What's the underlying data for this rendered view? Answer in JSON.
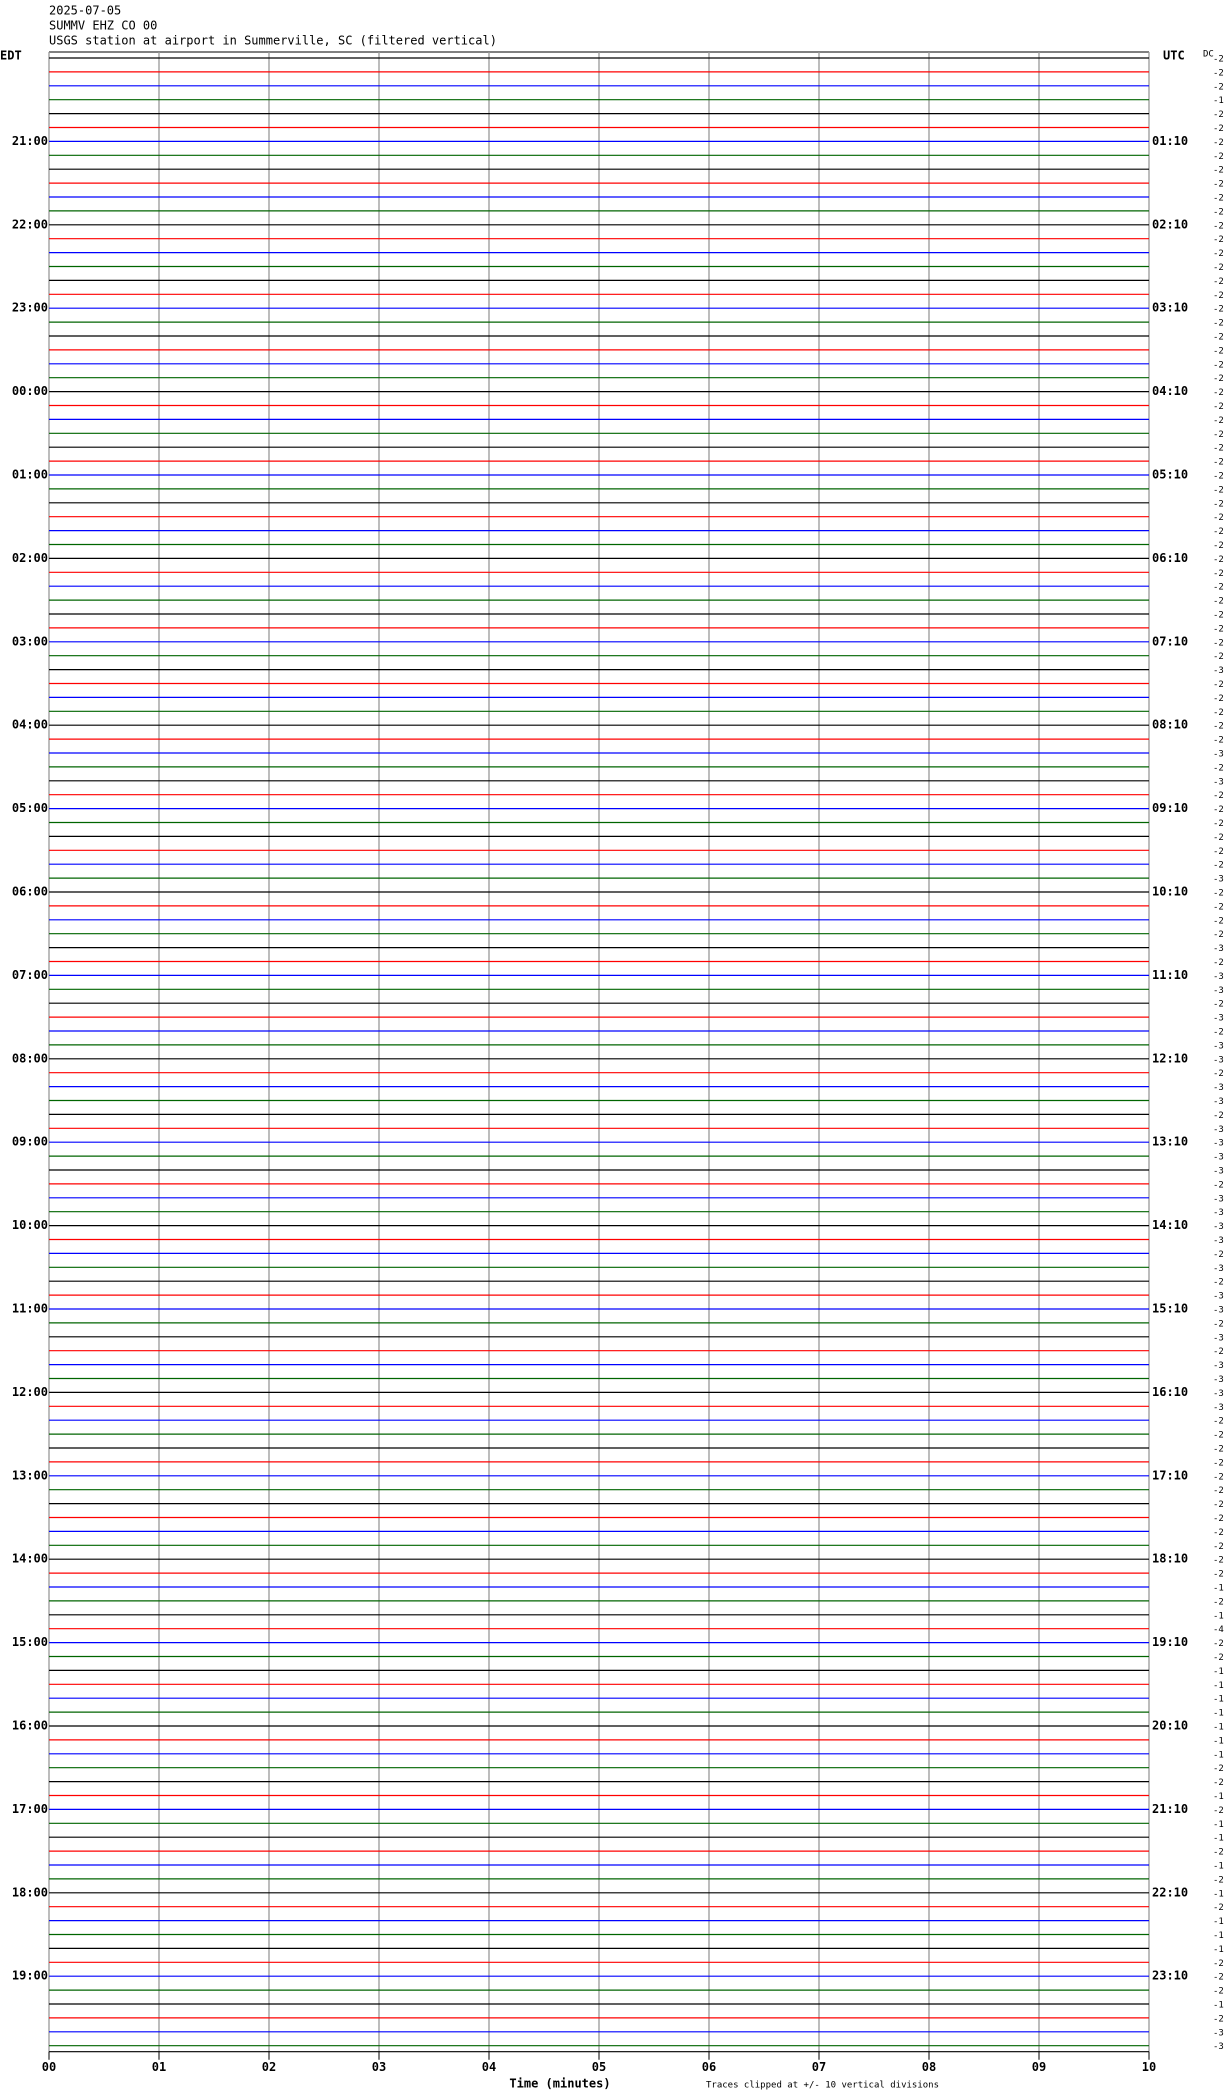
{
  "chart_data": {
    "type": "helicorder",
    "date": "2025-07-05",
    "station": "SUMMV EHZ CO 00",
    "description": "USGS station at airport in Summerville, SC (filtered vertical)",
    "left_axis_label": "EDT",
    "right_axis_label": "UTC",
    "dc_label": "DC",
    "x_axis_label": "Time (minutes)",
    "note": "Traces clipped at +/- 10 vertical divisions",
    "left_times": [
      "21:00",
      "22:00",
      "23:00",
      "00:00",
      "01:00",
      "02:00",
      "03:00",
      "04:00",
      "05:00",
      "06:00",
      "07:00",
      "08:00",
      "09:00",
      "10:00",
      "11:00",
      "12:00",
      "13:00",
      "14:00",
      "15:00",
      "16:00",
      "17:00",
      "18:00",
      "19:00"
    ],
    "right_times": [
      "01:10",
      "02:10",
      "03:10",
      "04:10",
      "05:10",
      "06:10",
      "07:10",
      "08:10",
      "09:10",
      "10:10",
      "11:10",
      "12:10",
      "13:10",
      "14:10",
      "15:10",
      "16:10",
      "17:10",
      "18:10",
      "19:10",
      "20:10",
      "21:10",
      "22:10",
      "23:10"
    ],
    "trace_colors": [
      "#000000",
      "#ff0000",
      "#0000ff",
      "#006400"
    ],
    "dc_offsets": [
      -2,
      -2,
      -2,
      -1,
      -2,
      -2,
      -2,
      -2,
      -2,
      -2,
      -2,
      -2,
      -2,
      -2,
      -2,
      -2,
      -2,
      -2,
      -2,
      -2,
      -2,
      -2,
      -2,
      -2,
      -2,
      -2,
      -2,
      -2,
      -2,
      -2,
      -2,
      -2,
      -2,
      -2,
      -2,
      -2,
      -2,
      -2,
      -2,
      -2,
      -2,
      -2,
      -2,
      -2,
      -3,
      -2,
      -2,
      -2,
      -2,
      -2,
      -3,
      -2,
      -3,
      -2,
      -2,
      -2,
      -2,
      -2,
      -2,
      -3,
      -2,
      -2,
      -2,
      -2,
      -3,
      -2,
      -3,
      -3,
      -2,
      -3,
      -2,
      -3,
      -3,
      -2,
      -3,
      -3,
      -2,
      -3,
      -3,
      -3,
      -3,
      -2,
      -3,
      -3,
      -3,
      -3,
      -2,
      -3,
      -2,
      -3,
      -3,
      -2,
      -3,
      -2,
      -3,
      -3,
      -3,
      -3,
      -2,
      -2,
      -2,
      -2,
      -2,
      -2,
      -2,
      -2,
      -2,
      -2,
      -2,
      -2,
      -1,
      -2,
      -1,
      -4,
      -2,
      -2,
      -1,
      -1,
      -1,
      -1,
      -1,
      -1,
      -1,
      -2,
      -2,
      -1,
      -2,
      -1,
      -1,
      -2,
      -1,
      -2,
      -1,
      -2,
      -1,
      -1,
      -1,
      -2,
      -2,
      -2,
      -1,
      -2,
      -3,
      -3
    ],
    "xlim": [
      0,
      10
    ],
    "xticks": [
      {
        "value": 0,
        "label": "00"
      },
      {
        "value": 1,
        "label": "01"
      },
      {
        "value": 2,
        "label": "02"
      },
      {
        "value": 3,
        "label": "03"
      },
      {
        "value": 4,
        "label": "04"
      },
      {
        "value": 5,
        "label": "05"
      },
      {
        "value": 6,
        "label": "06"
      },
      {
        "value": 7,
        "label": "07"
      },
      {
        "value": 8,
        "label": "08"
      },
      {
        "value": 9,
        "label": "09"
      },
      {
        "value": 10,
        "label": "10"
      }
    ],
    "grid": true
  }
}
